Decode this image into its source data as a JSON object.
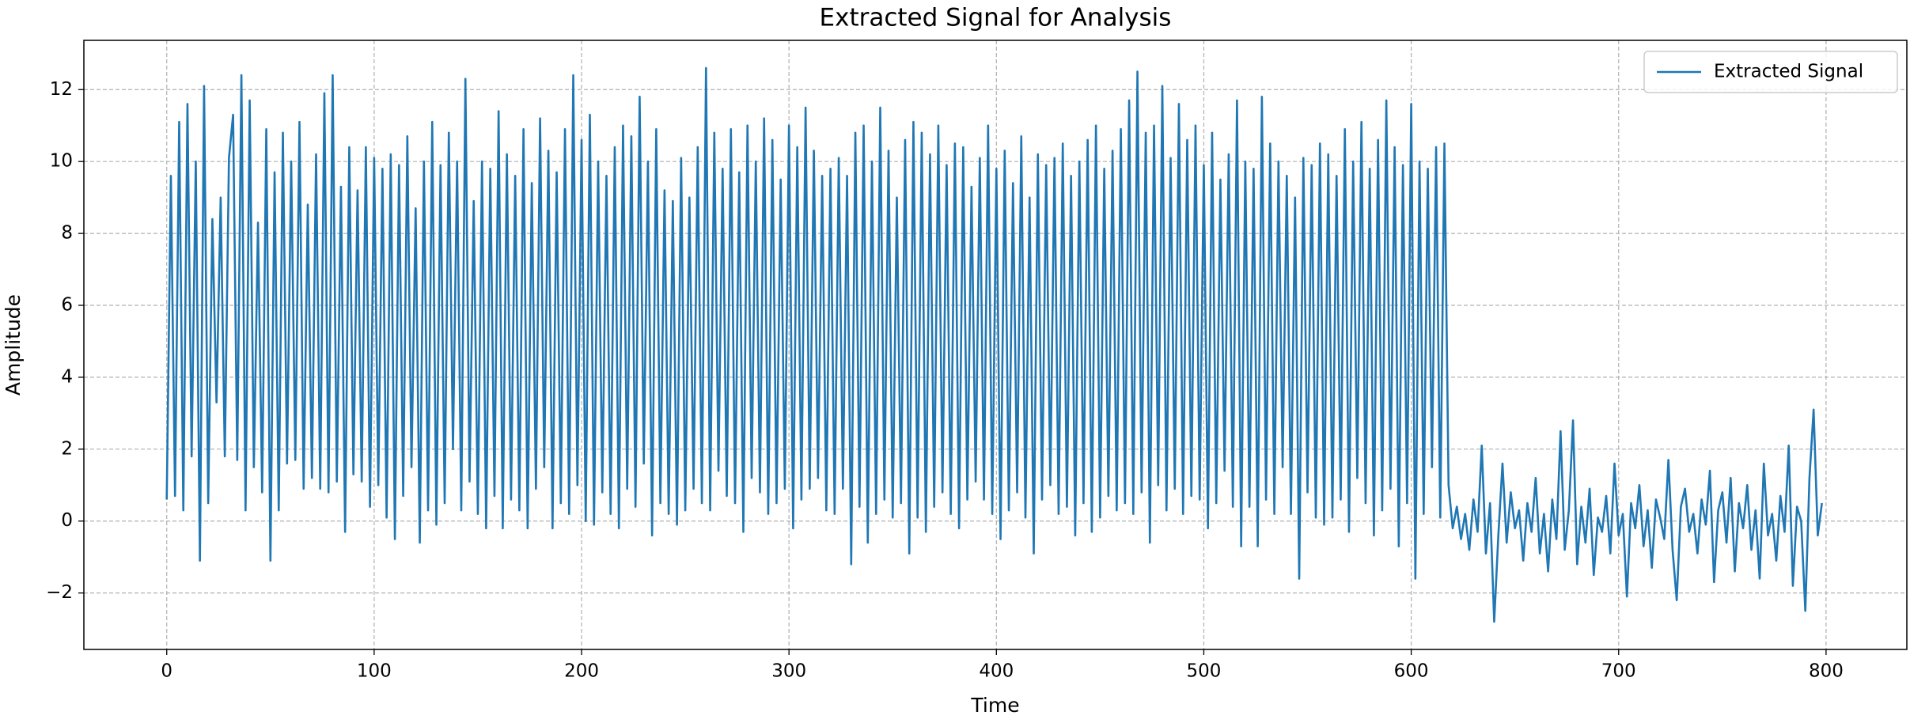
{
  "chart_data": {
    "type": "line",
    "title": "Extracted Signal for Analysis",
    "x_label": "Time",
    "y_label": "Amplitude",
    "x": [
      0,
      2,
      4,
      6,
      8,
      10,
      12,
      14,
      16,
      18,
      20,
      22,
      24,
      26,
      28,
      30,
      32,
      34,
      36,
      38,
      40,
      42,
      44,
      46,
      48,
      50,
      52,
      54,
      56,
      58,
      60,
      62,
      64,
      66,
      68,
      70,
      72,
      74,
      76,
      78,
      80,
      82,
      84,
      86,
      88,
      90,
      92,
      94,
      96,
      98,
      100,
      102,
      104,
      106,
      108,
      110,
      112,
      114,
      116,
      118,
      120,
      122,
      124,
      126,
      128,
      130,
      132,
      134,
      136,
      138,
      140,
      142,
      144,
      146,
      148,
      150,
      152,
      154,
      156,
      158,
      160,
      162,
      164,
      166,
      168,
      170,
      172,
      174,
      176,
      178,
      180,
      182,
      184,
      186,
      188,
      190,
      192,
      194,
      196,
      198,
      200,
      202,
      204,
      206,
      208,
      210,
      212,
      214,
      216,
      218,
      220,
      222,
      224,
      226,
      228,
      230,
      232,
      234,
      236,
      238,
      240,
      242,
      244,
      246,
      248,
      250,
      252,
      254,
      256,
      258,
      260,
      262,
      264,
      266,
      268,
      270,
      272,
      274,
      276,
      278,
      280,
      282,
      284,
      286,
      288,
      290,
      292,
      294,
      296,
      298,
      300,
      302,
      304,
      306,
      308,
      310,
      312,
      314,
      316,
      318,
      320,
      322,
      324,
      326,
      328,
      330,
      332,
      334,
      336,
      338,
      340,
      342,
      344,
      346,
      348,
      350,
      352,
      354,
      356,
      358,
      360,
      362,
      364,
      366,
      368,
      370,
      372,
      374,
      376,
      378,
      380,
      382,
      384,
      386,
      388,
      390,
      392,
      394,
      396,
      398,
      400,
      402,
      404,
      406,
      408,
      410,
      412,
      414,
      416,
      418,
      420,
      422,
      424,
      426,
      428,
      430,
      432,
      434,
      436,
      438,
      440,
      442,
      444,
      446,
      448,
      450,
      452,
      454,
      456,
      458,
      460,
      462,
      464,
      466,
      468,
      470,
      472,
      474,
      476,
      478,
      480,
      482,
      484,
      486,
      488,
      490,
      492,
      494,
      496,
      498,
      500,
      502,
      504,
      506,
      508,
      510,
      512,
      514,
      516,
      518,
      520,
      522,
      524,
      526,
      528,
      530,
      532,
      534,
      536,
      538,
      540,
      542,
      544,
      546,
      548,
      550,
      552,
      554,
      556,
      558,
      560,
      562,
      564,
      566,
      568,
      570,
      572,
      574,
      576,
      578,
      580,
      582,
      584,
      586,
      588,
      590,
      592,
      594,
      596,
      598,
      600,
      602,
      604,
      606,
      608,
      610,
      612,
      614,
      616,
      618,
      620,
      622,
      624,
      626,
      628,
      630,
      632,
      634,
      636,
      638,
      640,
      642,
      644,
      646,
      648,
      650,
      652,
      654,
      656,
      658,
      660,
      662,
      664,
      666,
      668,
      670,
      672,
      674,
      676,
      678,
      680,
      682,
      684,
      686,
      688,
      690,
      692,
      694,
      696,
      698,
      700,
      702,
      704,
      706,
      708,
      710,
      712,
      714,
      716,
      718,
      720,
      722,
      724,
      726,
      728,
      730,
      732,
      734,
      736,
      738,
      740,
      742,
      744,
      746,
      748,
      750,
      752,
      754,
      756,
      758,
      760,
      762,
      764,
      766,
      768,
      770,
      772,
      774,
      776,
      778,
      780,
      782,
      784,
      786,
      788,
      790,
      792,
      794,
      796,
      798
    ],
    "series": [
      {
        "name": "Extracted Signal",
        "color": "#1f77b4",
        "values": [
          0.6,
          9.6,
          0.7,
          11.1,
          0.3,
          11.6,
          1.8,
          10.0,
          -1.1,
          12.1,
          0.5,
          8.4,
          3.3,
          9.0,
          1.8,
          10.1,
          11.3,
          1.7,
          12.4,
          0.3,
          11.7,
          1.5,
          8.3,
          0.8,
          10.9,
          -1.1,
          9.7,
          0.3,
          10.8,
          1.6,
          10.0,
          1.7,
          11.1,
          0.9,
          8.8,
          1.2,
          10.2,
          0.9,
          11.9,
          0.8,
          12.4,
          1.1,
          9.3,
          -0.3,
          10.4,
          1.3,
          9.2,
          1.1,
          10.4,
          0.4,
          10.1,
          1.0,
          9.8,
          0.1,
          10.2,
          -0.5,
          9.9,
          0.7,
          10.7,
          1.5,
          8.7,
          -0.6,
          10.0,
          0.3,
          11.1,
          -0.1,
          9.9,
          0.5,
          10.8,
          2.0,
          10.0,
          0.3,
          12.3,
          1.1,
          8.9,
          0.2,
          10.0,
          -0.2,
          9.8,
          0.7,
          11.4,
          -0.2,
          10.2,
          0.6,
          9.6,
          0.3,
          10.9,
          -0.2,
          9.4,
          0.9,
          11.2,
          1.5,
          10.3,
          -0.2,
          9.7,
          0.5,
          10.9,
          0.2,
          12.4,
          1.0,
          10.6,
          0.0,
          11.3,
          -0.1,
          10.0,
          0.8,
          9.6,
          0.2,
          10.4,
          -0.2,
          11.0,
          0.9,
          10.7,
          0.4,
          11.8,
          1.6,
          10.0,
          -0.4,
          10.9,
          0.5,
          9.2,
          0.2,
          8.9,
          -0.1,
          10.1,
          0.3,
          9.0,
          0.9,
          10.4,
          0.5,
          12.6,
          0.3,
          10.8,
          1.4,
          9.8,
          0.7,
          10.9,
          0.5,
          9.7,
          -0.3,
          11.0,
          1.2,
          10.0,
          0.8,
          11.2,
          0.2,
          10.6,
          0.5,
          9.5,
          0.9,
          11.0,
          -0.2,
          10.4,
          0.6,
          11.5,
          0.9,
          10.3,
          1.2,
          9.6,
          0.3,
          9.8,
          0.2,
          10.1,
          0.9,
          9.6,
          -1.2,
          10.8,
          0.4,
          11.0,
          -0.6,
          10.0,
          0.2,
          11.5,
          0.6,
          10.3,
          0.1,
          9.0,
          0.5,
          10.6,
          -0.9,
          11.1,
          0.1,
          10.8,
          -0.3,
          10.2,
          0.4,
          11.0,
          0.8,
          9.9,
          0.2,
          10.5,
          -0.2,
          10.4,
          0.6,
          9.3,
          1.1,
          10.1,
          0.6,
          11.0,
          0.2,
          9.8,
          -0.5,
          10.3,
          0.3,
          9.4,
          0.8,
          10.7,
          0.1,
          9.0,
          -0.9,
          10.2,
          0.6,
          9.9,
          1.0,
          10.1,
          0.2,
          10.5,
          0.4,
          9.6,
          -0.4,
          10.0,
          0.5,
          10.6,
          -0.3,
          11.0,
          0.1,
          9.8,
          0.7,
          10.3,
          0.3,
          10.9,
          0.5,
          11.7,
          0.2,
          12.5,
          0.8,
          10.8,
          -0.6,
          11.0,
          1.0,
          12.1,
          0.3,
          10.1,
          0.9,
          11.6,
          0.2,
          10.6,
          0.7,
          11.0,
          0.6,
          9.9,
          -0.2,
          10.8,
          0.5,
          9.5,
          1.4,
          10.2,
          0.4,
          11.7,
          -0.7,
          10.0,
          0.4,
          9.8,
          -0.7,
          11.8,
          0.6,
          10.5,
          0.2,
          10.0,
          1.5,
          9.6,
          0.2,
          9.0,
          -1.6,
          10.1,
          0.8,
          9.9,
          0.1,
          10.5,
          -0.1,
          10.2,
          0.1,
          9.6,
          0.6,
          10.9,
          -0.3,
          10.0,
          1.2,
          11.1,
          0.5,
          9.8,
          -0.4,
          10.6,
          0.3,
          11.7,
          0.9,
          10.4,
          -0.7,
          9.9,
          0.5,
          11.6,
          -1.6,
          10.0,
          0.2,
          9.8,
          1.5,
          10.4,
          0.1,
          10.5,
          1.0,
          -0.2,
          0.4,
          -0.5,
          0.2,
          -0.8,
          0.6,
          -0.3,
          2.1,
          -0.9,
          0.5,
          -2.8,
          -0.4,
          1.6,
          -0.6,
          0.8,
          -0.2,
          0.3,
          -1.1,
          0.5,
          -0.3,
          1.2,
          -0.9,
          0.2,
          -1.4,
          0.6,
          -0.5,
          2.5,
          -0.8,
          0.3,
          2.8,
          -1.2,
          0.4,
          -0.6,
          0.9,
          -1.5,
          0.1,
          -0.3,
          0.7,
          -0.9,
          1.6,
          -0.4,
          0.2,
          -2.1,
          0.5,
          -0.2,
          1.0,
          -0.7,
          0.3,
          -1.3,
          0.6,
          0.1,
          -0.5,
          1.7,
          -0.8,
          -2.2,
          0.4,
          0.9,
          -0.3,
          0.2,
          -0.9,
          0.6,
          -0.1,
          1.4,
          -1.7,
          0.3,
          0.8,
          -0.6,
          1.2,
          -1.4,
          0.5,
          -0.2,
          1.0,
          -0.8,
          0.3,
          -1.6,
          1.6,
          -0.4,
          0.2,
          -1.1,
          0.7,
          -0.3,
          2.1,
          -1.8,
          0.4,
          0.0,
          -2.5,
          1.2,
          3.1,
          -0.4,
          0.5
        ]
      }
    ],
    "xlim": [
      -39.95,
      838.95
    ],
    "xticks": [
      0,
      100,
      200,
      300,
      400,
      500,
      600,
      700,
      800
    ],
    "ylim": [
      -3.57,
      13.37
    ],
    "yticks": [
      {
        "value": -2,
        "label": "−2"
      },
      0,
      2,
      4,
      6,
      8,
      10,
      12
    ],
    "grid": true,
    "legend": "upper right"
  }
}
